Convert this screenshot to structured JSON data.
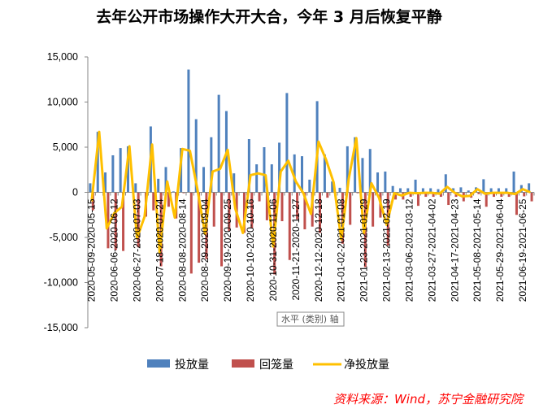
{
  "chart_data": {
    "type": "bar",
    "title": "去年公开市场操作大开大合，今年 3 月后恢复平静",
    "ylim": [
      -15000,
      15000
    ],
    "yticks": [
      15000,
      10000,
      5000,
      0,
      -5000,
      -10000,
      -15000
    ],
    "ytick_labels": [
      "15,000",
      "10,000",
      "5,000",
      "0",
      "-5,000",
      "-10,000",
      "-15,000"
    ],
    "num_categories": 59,
    "x_labels": [
      {
        "index": 0,
        "label": "2020-05-09-2020-05-15"
      },
      {
        "index": 3,
        "label": "2020-06-06-2020-06-12"
      },
      {
        "index": 6,
        "label": "2020-06-27-2020-07-03"
      },
      {
        "index": 9,
        "label": "2020-07-18-2020-07-24"
      },
      {
        "index": 12,
        "label": "2020-08-08-2020-08-14"
      },
      {
        "index": 15,
        "label": "2020-08-29-2020-09-04"
      },
      {
        "index": 18,
        "label": "2020-09-19-2020-09-25"
      },
      {
        "index": 21,
        "label": "2020-10-10-2020-10-16"
      },
      {
        "index": 24,
        "label": "2020-10-31-2020-11-06"
      },
      {
        "index": 27,
        "label": "2020-11-21-2020-11-27"
      },
      {
        "index": 30,
        "label": "2020-12-12-2020-12-18"
      },
      {
        "index": 33,
        "label": "2021-01-02-2021-01-08"
      },
      {
        "index": 36,
        "label": "2021-01-23-2021-01-29"
      },
      {
        "index": 39,
        "label": "2021-02-13-2021-02-19"
      },
      {
        "index": 42,
        "label": "2021-03-06-2021-03-12"
      },
      {
        "index": 45,
        "label": "2021-03-27-2021-04-02"
      },
      {
        "index": 48,
        "label": "2021-04-17-2021-04-23"
      },
      {
        "index": 51,
        "label": "2021-05-08-2021-05-14"
      },
      {
        "index": 54,
        "label": "2021-05-29-2021-06-04"
      },
      {
        "index": 57,
        "label": "2021-06-19-2021-06-25"
      }
    ],
    "series": [
      {
        "name": "投放量",
        "type": "bar",
        "color": "#4F81BD",
        "values": [
          1000,
          6700,
          2200,
          4100,
          4900,
          5100,
          1000,
          0,
          7300,
          1500,
          2800,
          100,
          4900,
          13600,
          8100,
          2800,
          6100,
          10800,
          9000,
          2100,
          0,
          5900,
          3100,
          5000,
          3100,
          5500,
          11000,
          4200,
          4000,
          1400,
          10100,
          4200,
          1200,
          500,
          5100,
          6100,
          3800,
          4800,
          2200,
          2300,
          700,
          450,
          450,
          1400,
          450,
          450,
          350,
          2000,
          450,
          550,
          200,
          550,
          1450,
          450,
          450,
          450,
          2300,
          800,
          1000
        ]
      },
      {
        "name": "回笼量",
        "type": "bar",
        "color": "#C0504D",
        "values": [
          -2000,
          0,
          -6200,
          -6400,
          -6500,
          0,
          -6100,
          -2700,
          -2000,
          -8200,
          -1600,
          -2900,
          -100,
          -9000,
          -7800,
          -7400,
          -3800,
          -8200,
          -4300,
          -3900,
          -4500,
          -4000,
          -1000,
          -3100,
          -9100,
          -3200,
          -7500,
          -3000,
          -4100,
          -3800,
          -4500,
          -600,
          -100,
          -5700,
          -3600,
          -100,
          -8300,
          -3800,
          -2800,
          -5900,
          -800,
          -800,
          -500,
          -1500,
          -500,
          -500,
          -500,
          -1400,
          -500,
          -1000,
          -600,
          -200,
          -1600,
          -500,
          -500,
          -500,
          -2500,
          -450,
          -1000
        ]
      },
      {
        "name": "净投放量",
        "type": "line",
        "color": "#FFC000",
        "values": [
          -1000,
          6700,
          -4000,
          -2300,
          -1600,
          5100,
          -5100,
          -2700,
          5300,
          -6700,
          1200,
          -2800,
          4800,
          4600,
          300,
          -4600,
          2300,
          2600,
          4700,
          -1800,
          -4500,
          1900,
          2100,
          1900,
          -6000,
          2300,
          3500,
          1200,
          -100,
          -2400,
          5600,
          3600,
          1100,
          -5200,
          1500,
          6000,
          -4500,
          1000,
          -600,
          -3600,
          -100,
          -350,
          -50,
          -100,
          -50,
          -50,
          -150,
          600,
          -50,
          -450,
          -400,
          350,
          -150,
          -50,
          -50,
          -50,
          -200,
          350,
          0
        ]
      }
    ],
    "legend": [
      "投放量",
      "回笼量",
      "净投放量"
    ],
    "legend_position": "bottom"
  },
  "tooltip": "水平 (类别) 轴",
  "source": "资料来源：Wind，苏宁金融研究院"
}
